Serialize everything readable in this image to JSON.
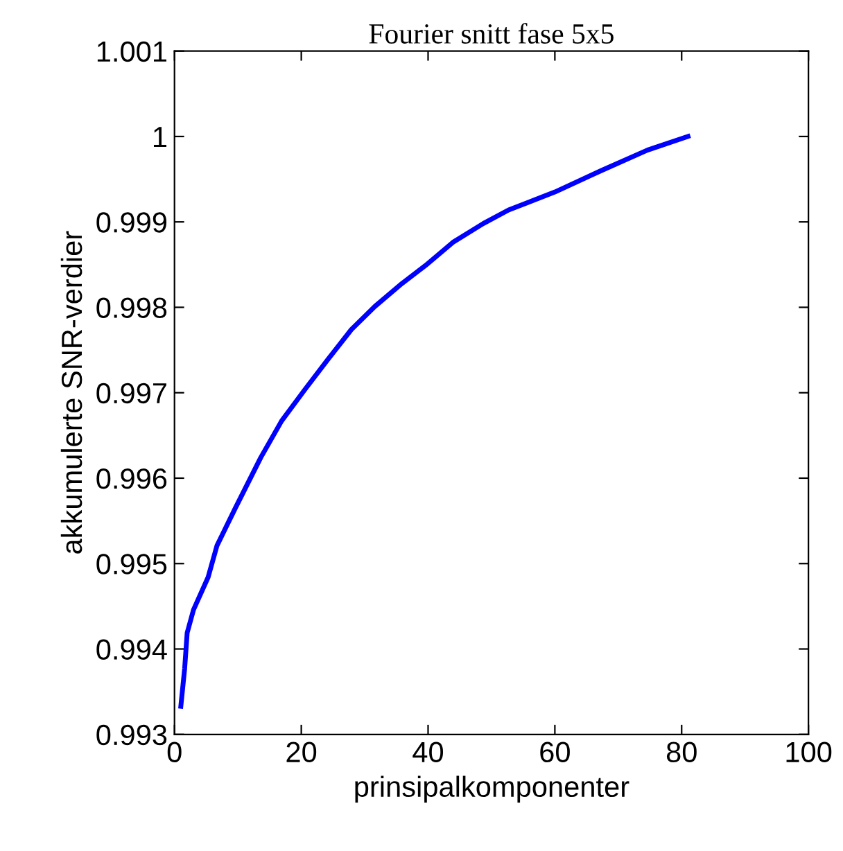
{
  "chart_data": {
    "type": "line",
    "title": "Fourier snitt fase 5x5",
    "xlabel": "prinsipalkomponenter",
    "ylabel": "akkumulerte SNR-verdier",
    "series": [
      {
        "color": "#0000ff",
        "x": [
          1,
          1.6,
          2,
          3,
          5.3,
          6.7,
          9.6,
          13.6,
          16.9,
          20.6,
          24.2,
          27.9,
          31.6,
          35.9,
          39.6,
          43.9,
          48.7,
          52.7,
          60,
          67.3,
          74.6,
          81
        ],
        "values": [
          0.99333,
          0.99377,
          0.99419,
          0.99446,
          0.99484,
          0.99521,
          0.99565,
          0.99624,
          0.99667,
          0.99704,
          0.99739,
          0.99774,
          0.99801,
          0.99828,
          0.99849,
          0.99876,
          0.99898,
          0.99914,
          0.99935,
          0.9996,
          0.99984,
          1.0
        ]
      }
    ],
    "xlim": [
      0,
      100
    ],
    "xticks": [
      0,
      20,
      40,
      60,
      80,
      100
    ],
    "ylim": [
      0.993,
      1.001
    ],
    "yticks": [
      0.993,
      0.994,
      0.995,
      0.996,
      0.997,
      0.998,
      0.999,
      1,
      1.001
    ],
    "grid": false,
    "legend": false,
    "marker": "none",
    "line_style": "solid"
  }
}
